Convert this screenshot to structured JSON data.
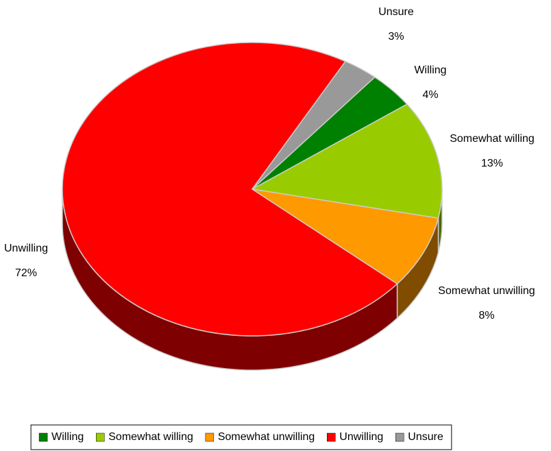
{
  "chart_data": {
    "type": "pie",
    "categories": [
      "Willing",
      "Somewhat willing",
      "Somewhat unwilling",
      "Unwilling",
      "Unsure"
    ],
    "values": [
      4,
      13,
      8,
      72,
      3
    ],
    "value_labels": [
      "4%",
      "13%",
      "8%",
      "72%",
      "3%"
    ],
    "colors": [
      "#008000",
      "#99cc00",
      "#ff9900",
      "#ff0000",
      "#999999"
    ],
    "legend": "bottom"
  }
}
